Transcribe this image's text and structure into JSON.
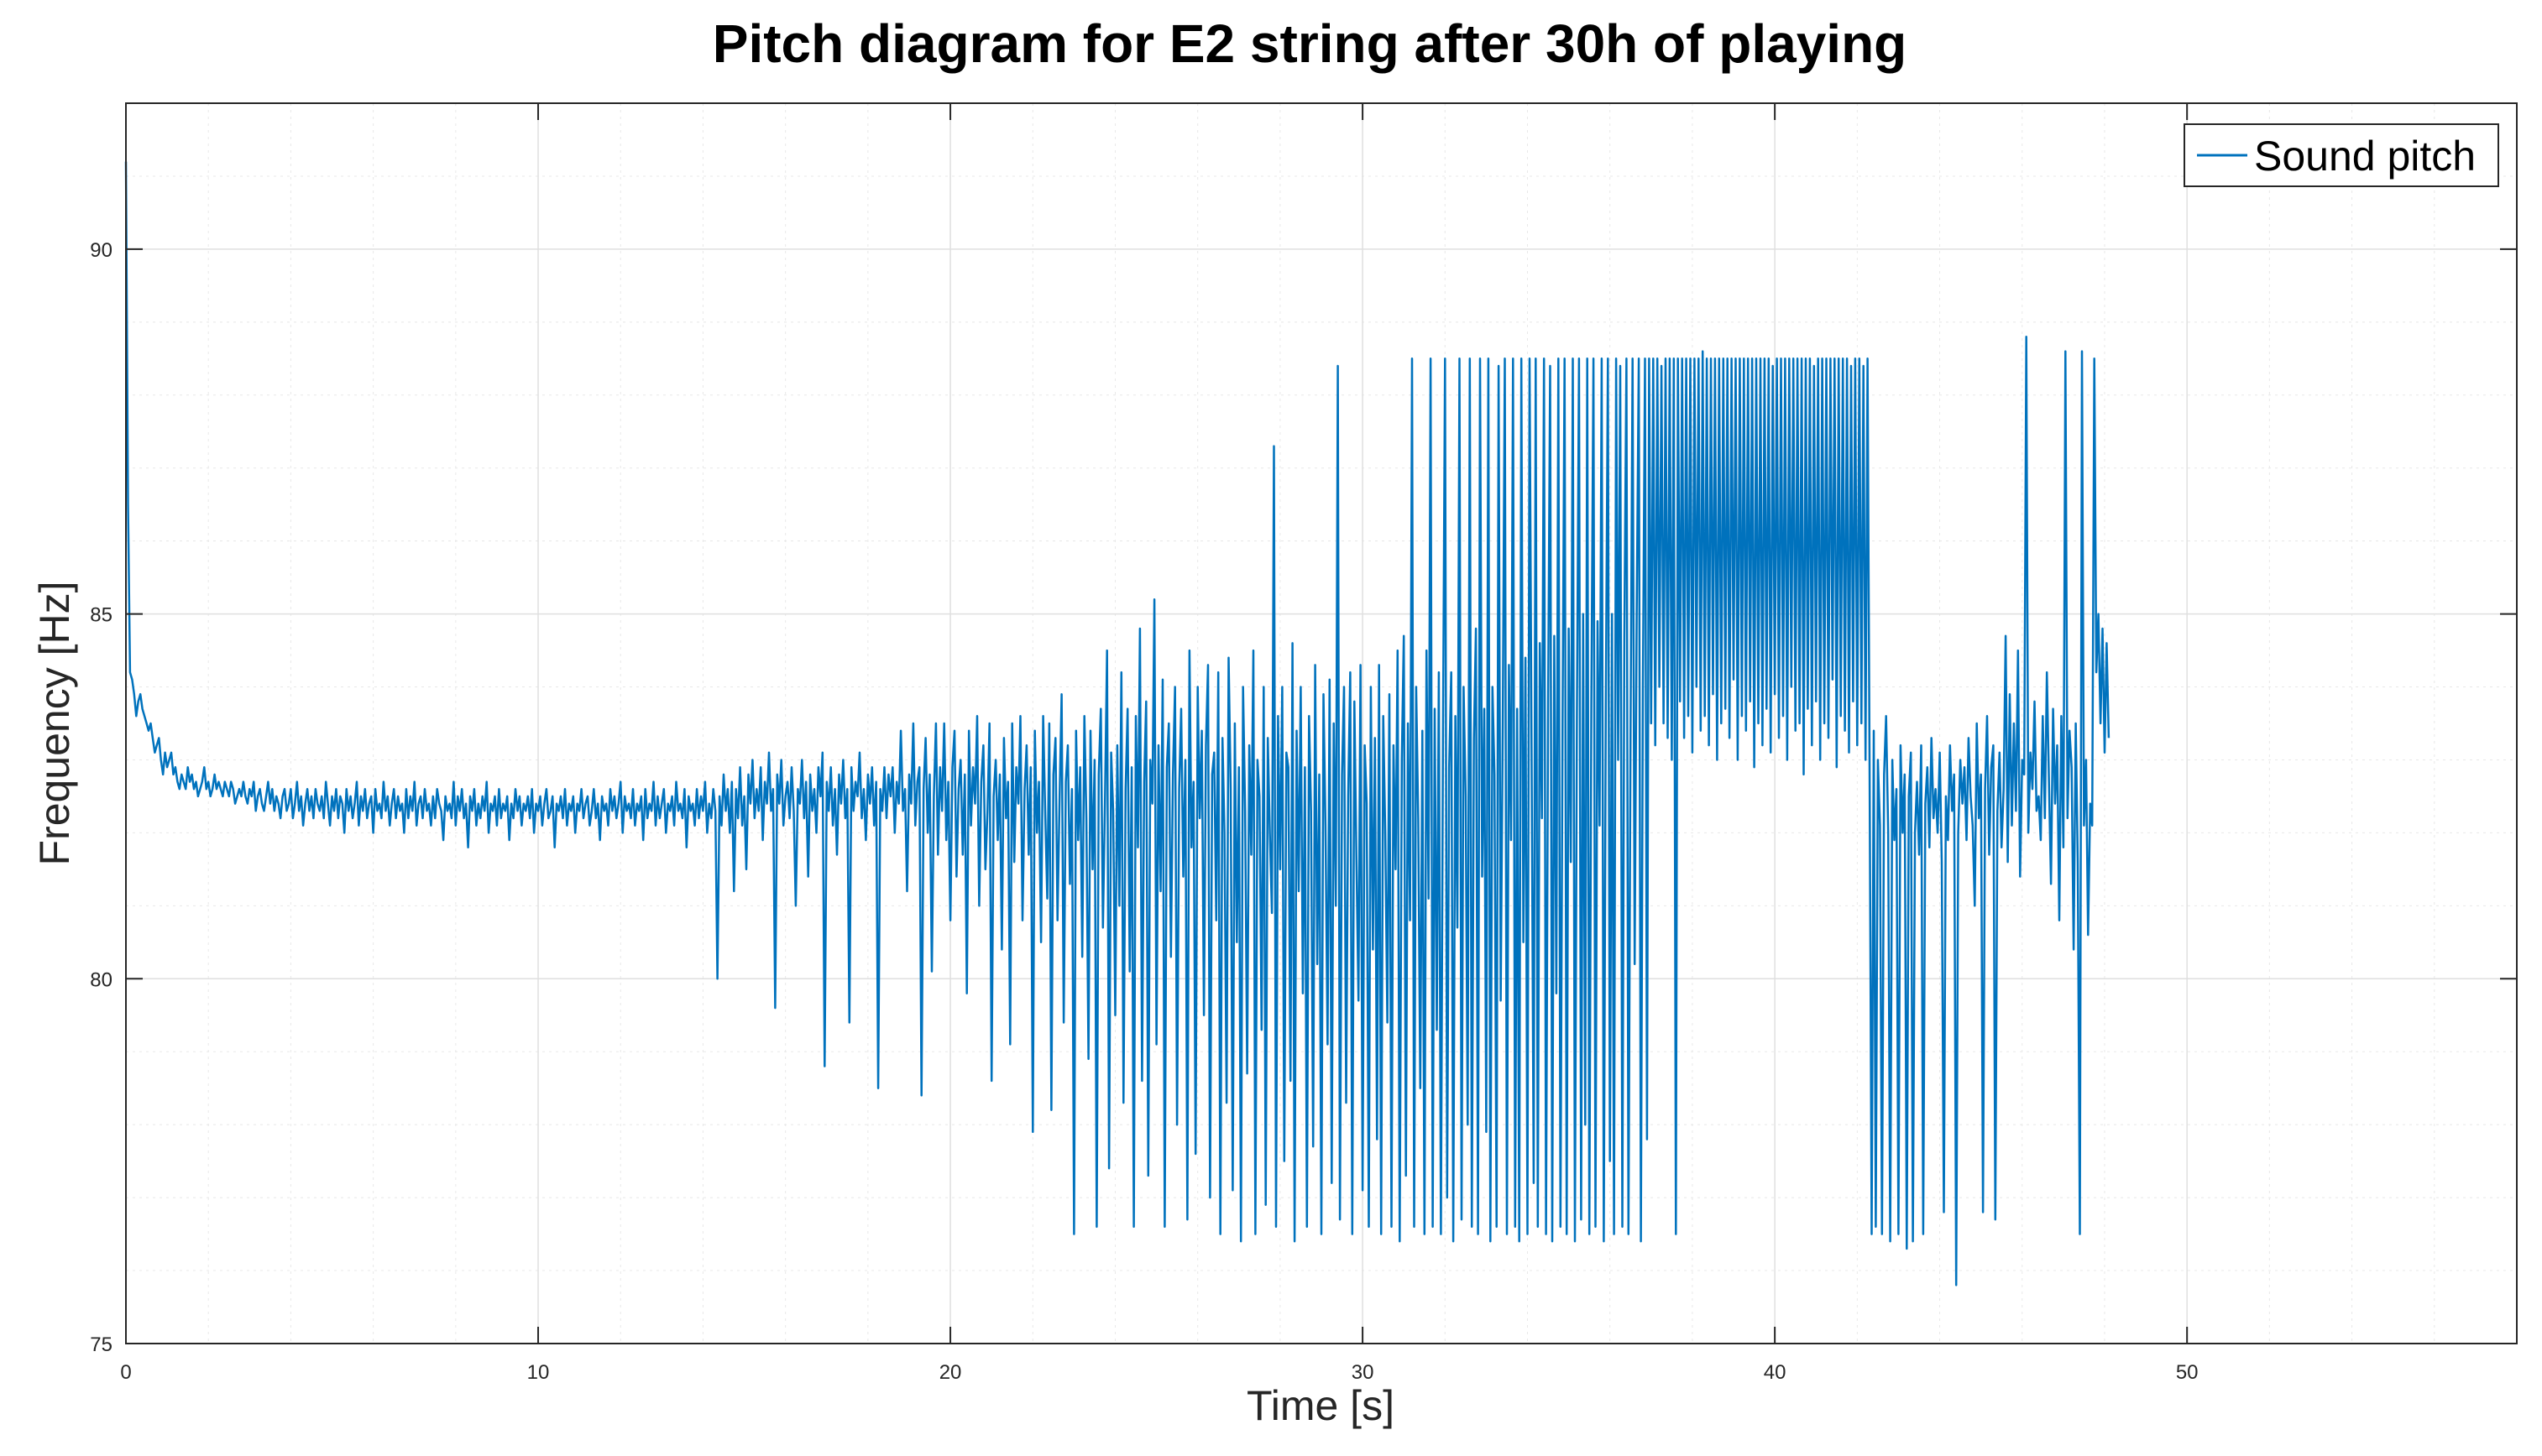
{
  "chart_data": {
    "type": "line",
    "title": "Pitch diagram for E2 string after 30h of playing",
    "xlabel": "Time [s]",
    "ylabel": "Frequency [Hz]",
    "xlim": [
      0,
      58
    ],
    "ylim": [
      75,
      92
    ],
    "xticks": [
      0,
      10,
      20,
      30,
      40,
      50
    ],
    "yticks": [
      75,
      80,
      85,
      90
    ],
    "xtick_labels": [
      "0",
      "10",
      "20",
      "30",
      "40",
      "50"
    ],
    "ytick_labels": [
      "75",
      "80",
      "85",
      "90"
    ],
    "grid": true,
    "minor_grid": true,
    "legend": {
      "position": "top-right",
      "entries": [
        "Sound pitch"
      ]
    },
    "series": [
      {
        "name": "Sound pitch",
        "color": "#0072BD",
        "x_start": 0,
        "x_step": 0.05,
        "values": [
          91.2,
          86.5,
          84.2,
          84.1,
          83.9,
          83.6,
          83.8,
          83.9,
          83.7,
          83.6,
          83.5,
          83.4,
          83.5,
          83.3,
          83.1,
          83.2,
          83.3,
          83.0,
          82.8,
          83.1,
          82.9,
          83.0,
          83.1,
          82.8,
          82.9,
          82.7,
          82.6,
          82.8,
          82.7,
          82.6,
          82.9,
          82.7,
          82.8,
          82.6,
          82.7,
          82.5,
          82.6,
          82.7,
          82.9,
          82.6,
          82.7,
          82.5,
          82.6,
          82.8,
          82.6,
          82.7,
          82.6,
          82.5,
          82.7,
          82.6,
          82.5,
          82.7,
          82.6,
          82.4,
          82.5,
          82.6,
          82.5,
          82.7,
          82.5,
          82.4,
          82.6,
          82.5,
          82.7,
          82.3,
          82.5,
          82.6,
          82.4,
          82.3,
          82.5,
          82.7,
          82.4,
          82.6,
          82.3,
          82.5,
          82.4,
          82.2,
          82.5,
          82.6,
          82.3,
          82.4,
          82.6,
          82.2,
          82.4,
          82.7,
          82.3,
          82.5,
          82.1,
          82.4,
          82.6,
          82.3,
          82.5,
          82.2,
          82.6,
          82.4,
          82.3,
          82.5,
          82.2,
          82.7,
          82.4,
          82.1,
          82.5,
          82.3,
          82.6,
          82.2,
          82.5,
          82.4,
          82.0,
          82.6,
          82.3,
          82.5,
          82.2,
          82.4,
          82.7,
          82.1,
          82.5,
          82.3,
          82.6,
          82.2,
          82.4,
          82.5,
          82.0,
          82.6,
          82.3,
          82.4,
          82.2,
          82.7,
          82.3,
          82.5,
          82.1,
          82.4,
          82.6,
          82.2,
          82.5,
          82.3,
          82.4,
          82.0,
          82.6,
          82.2,
          82.5,
          82.3,
          82.7,
          82.1,
          82.4,
          82.5,
          82.2,
          82.6,
          82.3,
          82.4,
          82.1,
          82.5,
          82.2,
          82.6,
          82.4,
          82.3,
          81.9,
          82.5,
          82.3,
          82.4,
          82.2,
          82.7,
          82.1,
          82.5,
          82.3,
          82.6,
          82.2,
          82.4,
          81.8,
          82.5,
          82.3,
          82.6,
          82.1,
          82.4,
          82.2,
          82.5,
          82.3,
          82.7,
          82.0,
          82.4,
          82.3,
          82.5,
          82.1,
          82.6,
          82.2,
          82.4,
          82.3,
          82.5,
          81.9,
          82.4,
          82.2,
          82.6,
          82.3,
          82.5,
          82.1,
          82.4,
          82.3,
          82.5,
          82.2,
          82.6,
          82.0,
          82.4,
          82.3,
          82.5,
          82.1,
          82.4,
          82.6,
          82.2,
          82.3,
          82.5,
          81.8,
          82.4,
          82.3,
          82.5,
          82.2,
          82.6,
          82.1,
          82.4,
          82.3,
          82.5,
          82.0,
          82.4,
          82.3,
          82.6,
          82.2,
          82.4,
          82.5,
          82.1,
          82.3,
          82.6,
          82.2,
          82.4,
          81.9,
          82.5,
          82.3,
          82.4,
          82.1,
          82.6,
          82.3,
          82.5,
          82.2,
          82.4,
          82.7,
          82.0,
          82.5,
          82.3,
          82.4,
          82.2,
          82.6,
          82.1,
          82.4,
          82.3,
          82.5,
          81.9,
          82.6,
          82.2,
          82.4,
          82.3,
          82.7,
          82.1,
          82.5,
          82.2,
          82.4,
          82.6,
          82.0,
          82.4,
          82.3,
          82.5,
          82.1,
          82.7,
          82.3,
          82.4,
          82.2,
          82.6,
          81.8,
          82.5,
          82.3,
          82.4,
          82.1,
          82.6,
          82.2,
          82.5,
          82.3,
          82.7,
          82.0,
          82.4,
          82.2,
          82.6,
          82.3,
          80.0,
          82.5,
          82.1,
          82.8,
          82.3,
          82.6,
          82.0,
          82.7,
          81.2,
          82.6,
          82.2,
          82.9,
          82.1,
          82.5,
          81.5,
          82.8,
          82.4,
          83.0,
          82.2,
          82.6,
          82.3,
          82.9,
          81.9,
          82.7,
          82.4,
          83.1,
          82.3,
          82.6,
          79.6,
          82.8,
          82.4,
          83.0,
          82.1,
          82.5,
          82.7,
          82.2,
          82.9,
          82.3,
          81.0,
          82.6,
          82.4,
          83.0,
          82.2,
          82.7,
          81.4,
          82.8,
          82.3,
          82.6,
          82.0,
          82.9,
          82.5,
          83.1,
          78.8,
          82.7,
          82.3,
          82.9,
          82.1,
          82.6,
          81.7,
          82.8,
          82.4,
          83.0,
          82.2,
          82.6,
          79.4,
          82.9,
          82.3,
          82.7,
          82.5,
          83.1,
          82.2,
          82.6,
          81.9,
          82.8,
          82.4,
          82.9,
          82.1,
          82.7,
          78.5,
          82.6,
          82.3,
          82.9,
          82.2,
          82.8,
          82.5,
          82.9,
          82.0,
          82.7,
          82.4,
          83.4,
          82.3,
          82.6,
          81.2,
          82.8,
          82.4,
          83.5,
          82.1,
          82.7,
          82.9,
          78.4,
          82.6,
          83.3,
          82.0,
          82.8,
          80.1,
          82.5,
          83.5,
          81.7,
          82.9,
          82.3,
          83.5,
          81.9,
          82.7,
          80.8,
          82.9,
          83.4,
          81.4,
          82.6,
          83.0,
          81.7,
          82.8,
          79.8,
          83.4,
          82.1,
          82.9,
          82.4,
          83.6,
          81.0,
          82.7,
          83.2,
          81.5,
          82.3,
          83.5,
          78.6,
          82.5,
          83.0,
          81.9,
          82.8,
          80.4,
          83.3,
          82.2,
          82.7,
          79.1,
          83.5,
          81.6,
          82.9,
          82.4,
          83.6,
          80.8,
          82.6,
          83.2,
          81.7,
          82.9,
          77.9,
          83.4,
          82.0,
          82.7,
          80.5,
          83.6,
          82.3,
          81.1,
          83.5,
          78.2,
          82.8,
          83.3,
          80.8,
          82.5,
          83.9,
          79.4,
          82.7,
          83.2,
          81.3,
          82.6,
          76.5,
          83.4,
          81.9,
          82.9,
          80.3,
          83.6,
          82.2,
          78.9,
          83.4,
          81.5,
          83.0,
          76.6,
          82.8,
          83.7,
          80.7,
          82.4,
          84.5,
          77.4,
          83.1,
          82.3,
          79.5,
          83.2,
          81.0,
          84.2,
          78.3,
          82.6,
          83.7,
          80.1,
          82.9,
          76.6,
          83.6,
          81.8,
          84.8,
          78.6,
          82.7,
          83.8,
          77.3,
          83.0,
          82.4,
          85.2,
          79.1,
          83.2,
          81.2,
          84.1,
          76.6,
          82.9,
          83.5,
          80.3,
          82.8,
          84.0,
          78.0,
          82.6,
          83.7,
          81.4,
          83.0,
          76.7,
          84.5,
          81.8,
          82.7,
          77.6,
          84.0,
          82.2,
          83.4,
          79.5,
          83.2,
          84.3,
          77.0,
          82.8,
          83.1,
          80.8,
          84.2,
          76.5,
          83.3,
          82.0,
          78.3,
          84.4,
          82.6,
          77.1,
          83.5,
          80.5,
          82.9,
          76.4,
          84.0,
          82.3,
          78.7,
          83.2,
          81.7,
          84.5,
          76.5,
          83.0,
          82.5,
          79.3,
          84.0,
          76.9,
          83.3,
          82.0,
          80.9,
          87.3,
          76.6,
          83.6,
          81.5,
          84.0,
          77.5,
          83.1,
          82.9,
          78.6,
          84.6,
          76.4,
          83.4,
          81.2,
          84.0,
          79.8,
          82.9,
          76.6,
          83.6,
          82.3,
          77.7,
          84.3,
          80.2,
          82.8,
          76.5,
          83.9,
          82.1,
          79.1,
          84.1,
          77.2,
          83.5,
          81.0,
          88.4,
          76.7,
          82.8,
          84.0,
          78.3,
          82.5,
          84.2,
          76.5,
          83.8,
          81.7,
          79.7,
          84.3,
          77.1,
          83.2,
          82.4,
          76.6,
          84.0,
          80.4,
          83.3,
          77.8,
          84.3,
          76.5,
          83.6,
          82.0,
          79.4,
          83.9,
          76.6,
          83.2,
          81.5,
          84.5,
          76.4,
          83.0,
          84.7,
          77.3,
          83.5,
          80.8,
          88.5,
          76.6,
          84.0,
          82.2,
          78.5,
          83.4,
          76.5,
          84.5,
          81.1,
          88.5,
          76.6,
          83.7,
          79.3,
          84.2,
          76.5,
          83.4,
          88.5,
          77.0,
          82.9,
          84.2,
          76.4,
          83.6,
          80.7,
          88.5,
          76.7,
          84.0,
          82.5,
          78.0,
          88.5,
          76.6,
          83.3,
          84.8,
          76.5,
          88.5,
          81.4,
          83.7,
          77.9,
          88.5,
          76.4,
          84.0,
          82.8,
          76.6,
          88.4,
          79.7,
          83.5,
          88.5,
          76.5,
          84.3,
          81.9,
          88.5,
          76.6,
          83.7,
          76.4,
          88.5,
          80.5,
          84.4,
          76.5,
          88.5,
          83.1,
          77.2,
          88.5,
          76.6,
          84.6,
          82.2,
          88.5,
          76.5,
          83.8,
          88.4,
          76.4,
          84.7,
          79.8,
          88.5,
          76.6,
          83.5,
          88.5,
          76.5,
          84.8,
          81.6,
          88.5,
          76.4,
          83.6,
          88.5,
          76.7,
          85.0,
          78.0,
          88.5,
          76.5,
          83.8,
          88.5,
          76.6,
          84.9,
          82.1,
          88.5,
          76.4,
          83.7,
          88.5,
          77.5,
          85.0,
          76.5,
          88.5,
          83.0,
          88.4,
          76.6,
          84.7,
          88.5,
          76.5,
          83.4,
          88.5,
          80.2,
          85.0,
          88.5,
          76.4,
          84.0,
          88.5,
          77.8,
          88.5,
          83.5,
          88.5,
          83.2,
          88.5,
          84.0,
          88.4,
          83.5,
          88.5,
          83.3,
          88.5,
          83.0,
          88.5,
          76.5,
          88.5,
          83.8,
          88.5,
          83.3,
          88.5,
          83.6,
          88.5,
          83.1,
          88.5,
          84.0,
          88.5,
          83.4,
          88.6,
          83.6,
          88.5,
          83.2,
          88.5,
          83.9,
          88.5,
          83.0,
          88.5,
          83.5,
          88.5,
          83.7,
          88.5,
          83.3,
          88.5,
          84.1,
          88.5,
          83.0,
          88.5,
          83.6,
          88.5,
          83.4,
          88.5,
          83.8,
          88.5,
          82.9,
          88.5,
          83.5,
          88.5,
          83.2,
          88.5,
          83.7,
          88.5,
          83.1,
          88.4,
          83.9,
          88.5,
          83.3,
          88.5,
          83.6,
          88.5,
          83.0,
          88.5,
          84.0,
          88.5,
          83.4,
          88.5,
          83.5,
          88.5,
          82.8,
          88.5,
          83.7,
          88.5,
          83.2,
          88.4,
          83.8,
          88.5,
          83.0,
          88.5,
          83.5,
          88.5,
          83.3,
          88.5,
          84.1,
          88.5,
          82.9,
          88.5,
          83.6,
          88.5,
          83.4,
          88.5,
          83.1,
          88.4,
          83.8,
          88.5,
          83.2,
          88.5,
          83.5,
          88.4,
          83.0,
          88.5,
          82.7,
          76.5,
          83.4,
          76.6,
          83.0,
          82.1,
          76.5,
          82.8,
          83.6,
          82.0,
          76.4,
          83.0,
          81.9,
          82.6,
          76.5,
          83.2,
          82.0,
          82.8,
          76.3,
          82.5,
          83.1,
          76.4,
          82.0,
          82.7,
          81.7,
          83.2,
          76.5,
          82.4,
          82.9,
          81.8,
          83.3,
          82.2,
          82.6,
          82.0,
          83.1,
          81.6,
          76.8,
          82.5,
          81.9,
          83.2,
          82.3,
          82.8,
          75.8,
          82.0,
          83.0,
          82.4,
          82.9,
          81.9,
          83.3,
          82.5,
          82.1,
          81.0,
          83.5,
          82.2,
          82.8,
          76.8,
          82.6,
          83.6,
          81.7,
          82.9,
          83.2,
          76.7,
          82.3,
          83.1,
          81.8,
          82.6,
          84.7,
          81.6,
          83.9,
          82.1,
          83.5,
          82.3,
          84.5,
          81.4,
          83.0,
          82.8,
          88.8,
          82.0,
          83.1,
          82.6,
          83.8,
          82.3,
          82.5,
          81.9,
          83.6,
          82.2,
          84.2,
          82.7,
          81.3,
          83.7,
          82.4,
          83.2,
          80.8,
          83.6,
          81.8,
          88.6,
          82.2,
          83.4,
          82.9,
          80.4,
          83.5,
          81.6,
          76.5,
          88.6,
          82.1,
          83.0,
          80.6,
          82.4,
          82.1,
          88.5,
          84.2,
          85.0,
          83.5,
          84.8,
          83.1,
          84.6,
          83.3
        ]
      }
    ]
  }
}
